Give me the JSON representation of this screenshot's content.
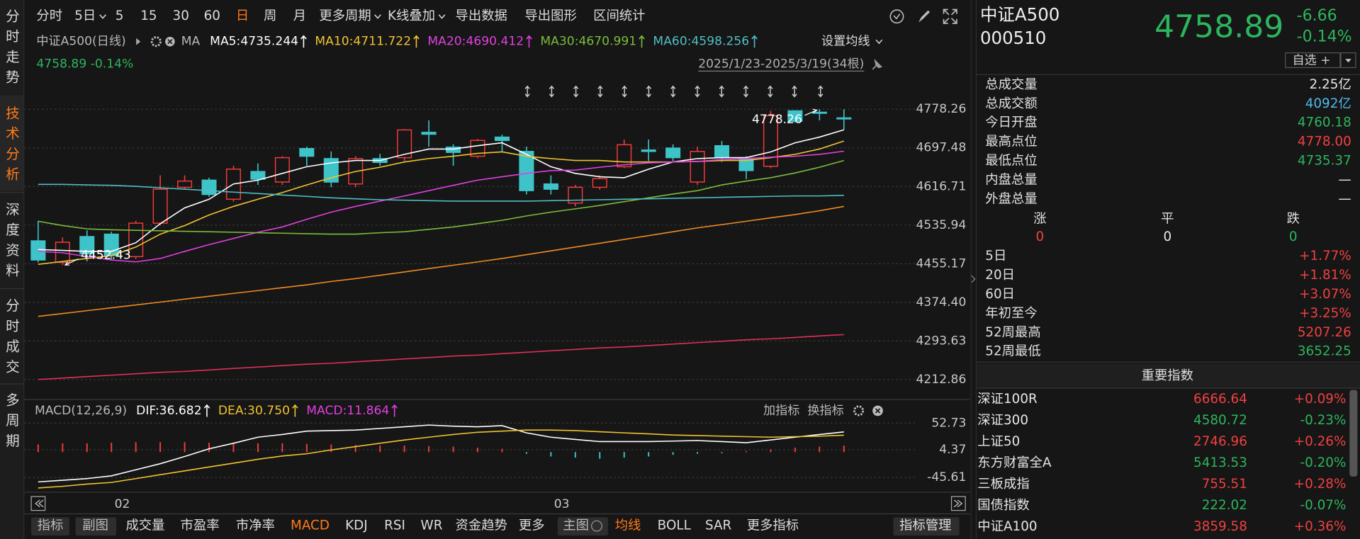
{
  "sidebar": [
    "分时走势",
    "技术分析",
    "深度资料",
    "分时成交",
    "多周期"
  ],
  "toolbar": [
    "分时",
    "5日",
    "5",
    "15",
    "30",
    "60",
    "日",
    "周",
    "月",
    "更多周期",
    "K线叠加",
    "导出数据",
    "导出图形",
    "区间统计"
  ],
  "tabs": [
    "指标",
    "副图",
    "成交量",
    "市盈率",
    "市净率",
    "MACD",
    "KDJ",
    "RSI",
    "WR",
    "资金趋势",
    "更多",
    "主图",
    "均线",
    "BOLL",
    "SAR",
    "更多指标",
    "指标管理"
  ],
  "chart_data": [
    {
      "type": "candlestick",
      "title": "中证A500(日线)",
      "ma_label": "MA",
      "quote_line": "4758.89 -0.14%",
      "settings": "设置均线",
      "range": "2025/1/23-2025/3/19(34根)",
      "categories": [
        null,
        null,
        null,
        "02",
        null,
        null,
        null,
        null,
        null,
        null,
        null,
        null,
        null,
        null,
        null,
        null,
        null,
        null,
        null,
        null,
        null,
        "03",
        null,
        null,
        null,
        null,
        null,
        null,
        null,
        null,
        null,
        null,
        null,
        null
      ],
      "open": [
        4503,
        4458,
        4512,
        4517,
        4470,
        4540,
        4615,
        4630,
        4590,
        4648,
        4626,
        4696,
        4675,
        4622,
        4675,
        4677,
        4730,
        4699,
        4680,
        4720,
        4690,
        4622,
        4582,
        4615,
        4658,
        4693,
        4697,
        4626,
        4702,
        4675,
        4659,
        4775,
        4772,
        4760.18
      ],
      "high": [
        4545,
        4510,
        4525,
        4522,
        4545,
        4640,
        4640,
        4635,
        4660,
        4665,
        4680,
        4700,
        4690,
        4680,
        4685,
        4737,
        4755,
        4705,
        4716,
        4725,
        4700,
        4640,
        4620,
        4640,
        4715,
        4715,
        4705,
        4700,
        4712,
        4680,
        4775,
        4776,
        4778.26,
        4778
      ],
      "low": [
        4458,
        4452.43,
        4460,
        4462,
        4465,
        4535,
        4610,
        4595,
        4585,
        4620,
        4620,
        4660,
        4615,
        4615,
        4660,
        4670,
        4700,
        4660,
        4676,
        4690,
        4600,
        4600,
        4575,
        4610,
        4655,
        4670,
        4670,
        4620,
        4668,
        4632,
        4655,
        4750,
        4755,
        4735.37
      ],
      "close": [
        4463,
        4500,
        4476,
        4472,
        4540,
        4611,
        4628,
        4600,
        4653,
        4632,
        4677,
        4680,
        4626,
        4675,
        4667,
        4735,
        4726,
        4688,
        4713,
        4713,
        4608,
        4611,
        4615,
        4633,
        4704,
        4690,
        4677,
        4690,
        4677,
        4650,
        4765,
        4753,
        4770,
        4758.89
      ],
      "up_color": "#f23b3b",
      "down_color": "#3ec3c9",
      "series": [
        {
          "name": "MA5:4735.244",
          "color": "#ffffff",
          "values": [
            4485,
            4483,
            4481,
            4481,
            4499,
            4539,
            4572,
            4590,
            4622,
            4630,
            4644,
            4658,
            4666,
            4671,
            4671,
            4684,
            4695,
            4695,
            4702,
            4708,
            4684,
            4658,
            4644,
            4637,
            4635,
            4653,
            4668,
            4675,
            4677,
            4677,
            4689,
            4708,
            4720,
            4735.244
          ]
        },
        {
          "name": "MA10:4711.722",
          "color": "#f0c330",
          "values": [
            4454,
            4460,
            4466,
            4472,
            4490,
            4517,
            4535,
            4557,
            4575,
            4590,
            4604,
            4620,
            4635,
            4648,
            4657,
            4668,
            4675,
            4680,
            4686,
            4689,
            4680,
            4675,
            4671,
            4671,
            4668,
            4668,
            4668,
            4669,
            4671,
            4671,
            4677,
            4684,
            4695,
            4711.722
          ]
        },
        {
          "name": "MA20:4690.412",
          "color": "#e040e0",
          "values": [
            4481,
            4478,
            4470,
            4463,
            4459,
            4466,
            4481,
            4495,
            4508,
            4521,
            4532,
            4548,
            4563,
            4575,
            4586,
            4597,
            4608,
            4619,
            4630,
            4637,
            4644,
            4650,
            4651,
            4657,
            4662,
            4666,
            4668,
            4669,
            4673,
            4675,
            4678,
            4680,
            4684,
            4690.412
          ]
        },
        {
          "name": "MA30:4670.991",
          "color": "#7bbd3a",
          "values": [
            4544,
            4535,
            4528,
            4526,
            4525,
            4524,
            4523,
            4522,
            4521,
            4520,
            4519,
            4518,
            4517,
            4517,
            4520,
            4522,
            4527,
            4532,
            4539,
            4546,
            4555,
            4563,
            4570,
            4577,
            4585,
            4593,
            4601,
            4608,
            4620,
            4628,
            4635,
            4645,
            4657,
            4670.991
          ]
        },
        {
          "name": "MA60:4598.256",
          "color": "#4fbfc5",
          "values": [
            4621,
            4621,
            4620,
            4619,
            4617,
            4614,
            4611,
            4608,
            4605,
            4602,
            4599,
            4596,
            4593,
            4591,
            4589,
            4588,
            4587,
            4586,
            4586,
            4586,
            4586,
            4587,
            4588,
            4589,
            4590,
            4591,
            4592,
            4593,
            4594,
            4595,
            4596,
            4597,
            4597,
            4598.256
          ]
        },
        {
          "color": "#f08a24",
          "values": [
            4345,
            4351,
            4357,
            4363,
            4369,
            4375,
            4381,
            4387,
            4393,
            4399,
            4405,
            4411,
            4418,
            4424,
            4431,
            4438,
            4445,
            4452,
            4459,
            4466,
            4474,
            4482,
            4490,
            4498,
            4506,
            4514,
            4522,
            4530,
            4537,
            4544,
            4551,
            4558,
            4566,
            4575
          ]
        },
        {
          "color": "#e0305a",
          "values": [
            4213,
            4216,
            4219,
            4222,
            4225,
            4228,
            4230,
            4233,
            4236,
            4239,
            4242,
            4245,
            4247,
            4250,
            4253,
            4256,
            4259,
            4262,
            4264,
            4267,
            4270,
            4273,
            4276,
            4279,
            4281,
            4284,
            4287,
            4290,
            4293,
            4296,
            4298,
            4301,
            4304,
            4307
          ]
        }
      ],
      "annotations": [
        {
          "value": 4778.26,
          "index": 32
        },
        {
          "value": 4452.43,
          "index": 1
        }
      ],
      "ylim": [
        4173,
        4898
      ],
      "yticks": [
        4778.26,
        4697.48,
        4616.71,
        4535.94,
        4455.17,
        {
          "value": 4374.4,
          "label": "4374.40"
        },
        4293.63,
        4212.86
      ],
      "grid": true
    },
    {
      "type": "macd",
      "title": "MACD(12,26,9)",
      "buttons": [
        "加指标",
        "换指标"
      ],
      "series": [
        {
          "name": "DIF:36.682",
          "color": "#ffffff",
          "values": [
            -54,
            -51,
            -48,
            -43,
            -32,
            -21,
            -8,
            6,
            16,
            27,
            32,
            38,
            39,
            40,
            43,
            46,
            49,
            47,
            46,
            48,
            35,
            27,
            23,
            19,
            19,
            19,
            20,
            21,
            19,
            17,
            22,
            27,
            32,
            36.682
          ]
        },
        {
          "name": "DEA:30.750",
          "color": "#f0c330",
          "values": [
            -65,
            -62,
            -58,
            -55,
            -48,
            -41,
            -34,
            -27,
            -20,
            -13,
            -7,
            -3,
            4,
            10,
            16,
            22,
            27,
            32,
            36,
            38,
            40,
            40,
            39,
            37,
            35,
            33,
            31,
            30,
            29,
            28,
            27,
            28,
            29,
            30.75
          ]
        }
      ],
      "bars": {
        "name": "MACD:11.864",
        "color": "#e040e0",
        "up_color": "#f23b3b",
        "down_color": "#3ec3c9",
        "values": [
          14,
          16,
          16,
          17,
          18,
          18,
          18,
          17,
          17,
          16,
          16,
          15,
          14,
          13,
          12,
          12,
          11,
          10,
          8,
          6,
          -3,
          -8,
          -10,
          -12,
          -10,
          -8,
          -5,
          -3,
          -2,
          2,
          5,
          8,
          10,
          11.864
        ]
      },
      "ylim": [
        -68,
        64
      ],
      "yticks": [
        52.73,
        4.37,
        -45.61
      ],
      "grid": true
    }
  ],
  "quote": {
    "name": "中证A500",
    "code": "000510",
    "price": 4758.89,
    "change": -6.66,
    "pct": "-0.14%",
    "watch": "自选 +"
  },
  "stats": [
    {
      "label": "总成交量",
      "value": "2.25亿",
      "color": "#e6e6e6"
    },
    {
      "label": "总成交额",
      "value": "4092亿",
      "color": "#4fb8e8"
    },
    {
      "label": "今日开盘",
      "value": "4760.18",
      "color": "#2db55d"
    },
    {
      "label": "最高点位",
      "value": "4778.00",
      "color": "#f04040"
    },
    {
      "label": "最低点位",
      "value": "4735.37",
      "color": "#2db55d"
    },
    {
      "label": "内盘总量",
      "value": "—",
      "color": "#e6e6e6"
    },
    {
      "label": "外盘总量",
      "value": "—",
      "color": "#e6e6e6"
    }
  ],
  "breadth": {
    "headers": [
      "涨",
      "平",
      "跌"
    ],
    "values": [
      0,
      0,
      0
    ],
    "colors": [
      "#f04040",
      "#e6e6e6",
      "#2db55d"
    ]
  },
  "periods": [
    {
      "label": "5日",
      "value": "+1.77%",
      "color": "#f04040"
    },
    {
      "label": "20日",
      "value": "+1.81%",
      "color": "#f04040"
    },
    {
      "label": "60日",
      "value": "+3.07%",
      "color": "#f04040"
    },
    {
      "label": "年初至今",
      "value": "+3.25%",
      "color": "#f04040"
    },
    {
      "label": "52周最高",
      "value": "5207.26",
      "color": "#f04040"
    },
    {
      "label": "52周最低",
      "value": "3652.25",
      "color": "#2db55d"
    }
  ],
  "indices": {
    "title": "重要指数",
    "rows": [
      [
        "深证100R",
        "6666.64",
        "+0.09%"
      ],
      [
        "深证300",
        "4580.72",
        "-0.23%"
      ],
      [
        "上证50",
        "2746.96",
        "+0.26%"
      ],
      [
        "东方财富全A",
        "5413.53",
        "-0.20%"
      ],
      [
        "三板成指",
        "755.51",
        "+0.28%"
      ],
      [
        "国债指数",
        "222.02",
        "-0.07%"
      ],
      [
        "中证A100",
        "3859.58",
        "+0.36%"
      ]
    ]
  }
}
